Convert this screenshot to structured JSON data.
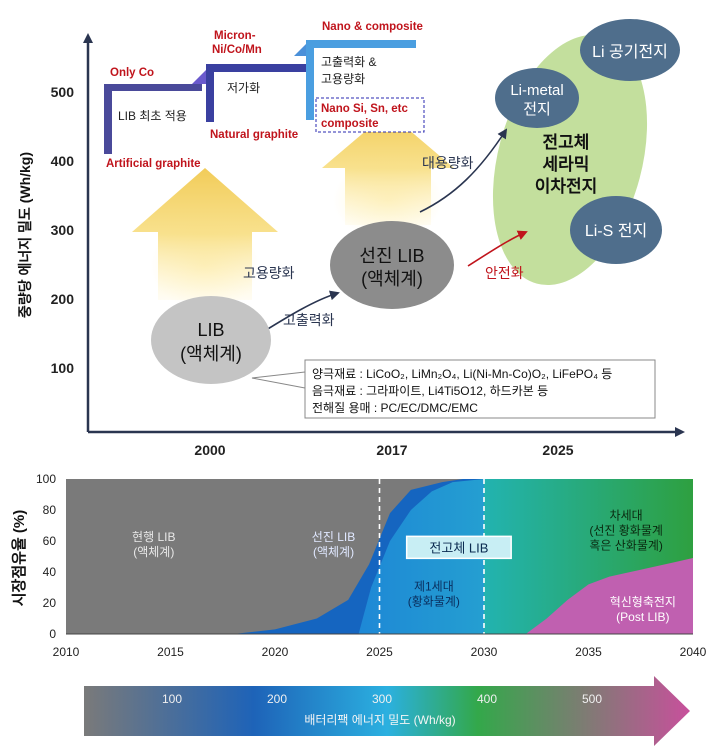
{
  "top": {
    "ylabel": "중량당 에너지 밀도 (Wh/kg)",
    "yticks": [
      "100",
      "200",
      "300",
      "400",
      "500"
    ],
    "xticks": [
      "2000",
      "2017",
      "2025"
    ],
    "steps": {
      "only_co": "Only Co",
      "lib_first": "LIB 최초 적용",
      "artificial_graphite": "Artificial graphite",
      "micron": [
        "Micron-",
        "Ni/Co/Mn"
      ],
      "low_cost": "저가화",
      "natural_graphite": "Natural graphite",
      "nano_composite": "Nano & composite",
      "high_power": [
        "고출력화 &",
        "고용량화"
      ],
      "nano_si": [
        "Nano Si, Sn, etc",
        "composite"
      ]
    },
    "bubbles": {
      "lib_liquid": [
        "LIB",
        "(액체계)"
      ],
      "advanced_lib": [
        "선진 LIB",
        "(액체계)"
      ],
      "li_air": "Li 공기전지",
      "li_metal": [
        "Li-metal",
        "전지"
      ],
      "solid_state": [
        "전고체",
        "세라믹",
        "이차전지"
      ],
      "li_s": "Li-S 전지"
    },
    "arrows": {
      "high_capacity": "고용량화",
      "high_output": "고출력화",
      "large_capacity": "대용량화",
      "safety": "안전화"
    },
    "materials": {
      "cathode": "양극재료 : LiCoO₂, LiMn₂O₄, Li(Ni-Mn-Co)O₂, LiFePO₄ 등",
      "anode": "음극재료 : 그라파이트, Li4Ti5O12, 하드카본 등",
      "electrolyte": "전해질 용매 : PC/EC/DMC/EMC"
    }
  },
  "chart_data": {
    "type": "area",
    "ylabel": "시장점유율 (%)",
    "xlim": [
      2010,
      2040
    ],
    "ylim": [
      0,
      100
    ],
    "xticks": [
      "2010",
      "2015",
      "2020",
      "2025",
      "2030",
      "2035",
      "2040"
    ],
    "yticks": [
      "0",
      "20",
      "40",
      "60",
      "80",
      "100"
    ],
    "dividers": [
      2025,
      2030
    ],
    "regions": [
      {
        "label": [
          "현행 LIB",
          "(액체계)"
        ],
        "color": "#7a7a7a"
      },
      {
        "label": [
          "선진 LIB",
          "(액체계)"
        ],
        "color": "#1565c0"
      },
      {
        "label": [
          "제1세대",
          "(황화물계)"
        ],
        "color": "#29b6e8"
      },
      {
        "label": [
          "차세대",
          "(선진 황화물계",
          "혹은 산화물계)"
        ],
        "color": "#2e9e3e"
      },
      {
        "label": [
          "혁신형축전지",
          "(Post LIB)"
        ],
        "color": "#c060b0"
      }
    ],
    "badge": "전고체 LIB",
    "boundaries": {
      "current_top": [
        [
          2010,
          0
        ],
        [
          2018,
          0
        ],
        [
          2020,
          3
        ],
        [
          2022,
          10
        ],
        [
          2023.5,
          22
        ],
        [
          2024.5,
          45
        ],
        [
          2025.5,
          78
        ],
        [
          2026.5,
          93
        ],
        [
          2028,
          98
        ],
        [
          2029,
          100
        ],
        [
          2040,
          100
        ]
      ],
      "advanced_top": [
        [
          2010,
          100
        ],
        [
          2040,
          100
        ]
      ],
      "gen1_top": [
        [
          2030,
          100
        ],
        [
          2040,
          100
        ]
      ],
      "post_top": [
        [
          2032,
          0
        ],
        [
          2033,
          10
        ],
        [
          2034,
          22
        ],
        [
          2035,
          32
        ],
        [
          2036,
          37
        ],
        [
          2037,
          40
        ],
        [
          2038,
          43
        ],
        [
          2039,
          46
        ],
        [
          2040,
          49
        ]
      ],
      "gen1_start": [
        2024,
        2030
      ],
      "next_start": [
        2030,
        2040
      ]
    }
  },
  "bottom_bar": {
    "ticks": [
      "100",
      "200",
      "300",
      "400",
      "500"
    ],
    "label": "배터리팩 에너지 밀도 (Wh/kg)"
  }
}
